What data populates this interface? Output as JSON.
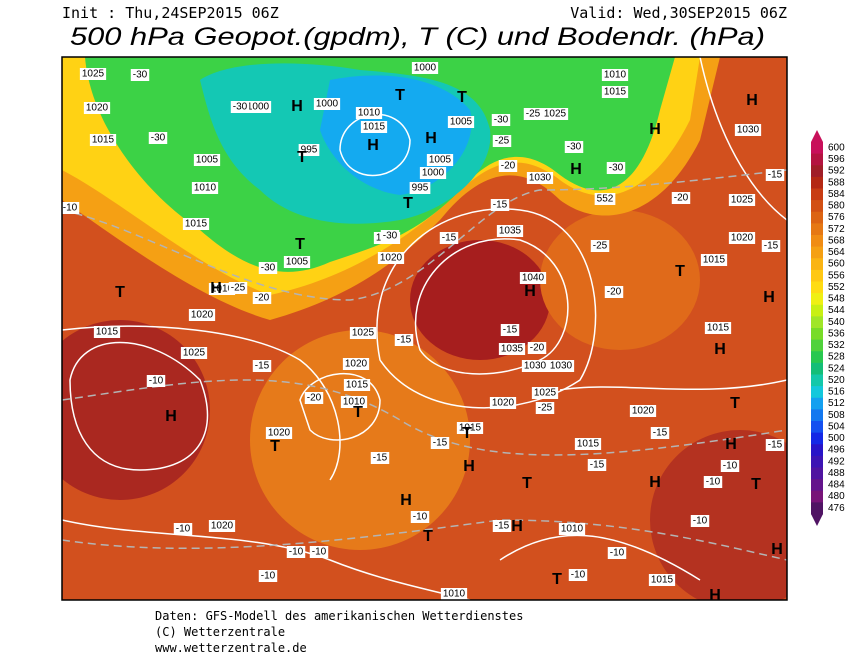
{
  "header": {
    "init": "Init : Thu,24SEP2015 06Z",
    "valid": "Valid: Wed,30SEP2015 06Z",
    "title": "500 hPa Geopot.(gpdm), T (C) und Bodendr. (hPa)"
  },
  "map_labels": {
    "isobars": [
      "1025",
      "1020",
      "1015",
      "1005",
      "1010",
      "1015",
      "1000",
      "1000",
      "1010",
      "1015",
      "995",
      "1005",
      "1000",
      "995",
      "1005",
      "1025",
      "1010",
      "1015",
      "1030",
      "1025",
      "1020",
      "1015",
      "1015",
      "1035",
      "1040",
      "1035",
      "1030",
      "1030",
      "1025",
      "1020",
      "1020",
      "1015",
      "1015",
      "1010",
      "1015",
      "1010",
      "1020",
      "1015",
      "1025",
      "1025",
      "1020",
      "1015",
      "1010",
      "1020",
      "1020",
      "1015",
      "1020",
      "1005",
      "1010",
      "1030",
      "1000",
      "552"
    ],
    "temperatures": [
      "-30",
      "-30",
      "-30",
      "-30",
      "-25",
      "-20",
      "-30",
      "-15",
      "-30",
      "-25",
      "-25",
      "-30",
      "-30",
      "-20",
      "-15",
      "-25",
      "-20",
      "-20",
      "-15",
      "-15",
      "-15",
      "-15",
      "-20",
      "-15",
      "-10",
      "-20",
      "-15",
      "-15",
      "-25",
      "-10",
      "-15",
      "-15",
      "-15",
      "-10",
      "-10",
      "-10",
      "-10",
      "-10",
      "-10",
      "-10",
      "-10",
      "-10",
      "-10",
      "-15"
    ],
    "pressure_centers": [
      "T",
      "T",
      "H",
      "H",
      "H",
      "T",
      "T",
      "T",
      "H",
      "H",
      "H",
      "H",
      "T",
      "H",
      "T",
      "H",
      "H",
      "H",
      "T",
      "T",
      "T",
      "H",
      "T",
      "H",
      "H",
      "T",
      "H",
      "T",
      "H",
      "T",
      "H",
      "T",
      "H"
    ]
  },
  "legend": {
    "values": [
      600,
      596,
      592,
      588,
      584,
      580,
      576,
      572,
      568,
      564,
      560,
      556,
      552,
      548,
      544,
      540,
      536,
      532,
      528,
      524,
      520,
      516,
      512,
      508,
      504,
      500,
      496,
      492,
      488,
      484,
      480,
      476
    ],
    "colors": [
      "#c8105a",
      "#b41440",
      "#a01e28",
      "#b42814",
      "#c83c14",
      "#d25014",
      "#dc6414",
      "#e67814",
      "#f08c14",
      "#f5a014",
      "#fab414",
      "#ffc814",
      "#ffdc14",
      "#f0f014",
      "#c8f014",
      "#a0e628",
      "#78dc28",
      "#50d23c",
      "#28c850",
      "#14be78",
      "#14c8aa",
      "#14c8dc",
      "#14a0f0",
      "#1478f0",
      "#1450f0",
      "#1428e6",
      "#2814c8",
      "#3c14b4",
      "#5014a0",
      "#64148c",
      "#781478",
      "#501464"
    ]
  },
  "footer": {
    "line1": "Daten: GFS-Modell des amerikanischen Wetterdienstes",
    "line2": "(C) Wetterzentrale",
    "line3": "www.wetterzentrale.de"
  }
}
